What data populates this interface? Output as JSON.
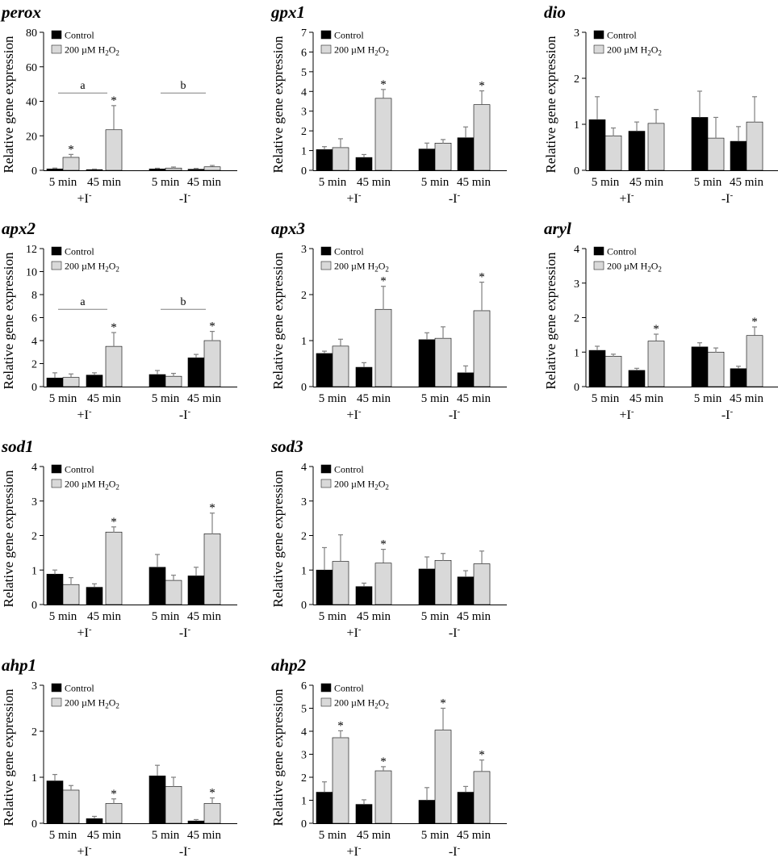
{
  "legend": {
    "control": "Control",
    "treated": "200 µM H",
    "treated_sub": "2",
    "treated_o": "O",
    "treated_sub2": "2"
  },
  "ylabel": "Relative gene expression",
  "time_labels": [
    "5 min",
    "45 min"
  ],
  "group_labels": [
    {
      "main": "+I",
      "sup": "-"
    },
    {
      "main": "-I",
      "sup": "-"
    }
  ],
  "colors": {
    "control": "#000000",
    "treated": "#d9d9d9",
    "error": "#808080"
  },
  "chart_data": [
    {
      "type": "bar",
      "title": "perox",
      "ylim": [
        0,
        80
      ],
      "yticks": [
        0,
        20,
        40,
        60,
        80
      ],
      "control": [
        0.8,
        0.4,
        0.8,
        0.6
      ],
      "treated": [
        7.5,
        23.5,
        1.3,
        2.0
      ],
      "control_err": [
        0.5,
        0.3,
        0.4,
        0.5
      ],
      "treated_err": [
        1.7,
        14.0,
        0.6,
        0.8
      ],
      "stars": [
        1,
        1,
        0,
        0
      ],
      "sig": [
        {
          "label": "a",
          "group": 0
        },
        {
          "label": "b",
          "group": 1
        }
      ]
    },
    {
      "type": "bar",
      "title": "gpx1",
      "ylim": [
        0,
        7
      ],
      "yticks": [
        0,
        1,
        2,
        3,
        4,
        5,
        6,
        7
      ],
      "control": [
        1.05,
        0.65,
        1.08,
        1.65
      ],
      "treated": [
        1.15,
        3.65,
        1.38,
        3.33
      ],
      "control_err": [
        0.15,
        0.15,
        0.3,
        0.55
      ],
      "treated_err": [
        0.45,
        0.45,
        0.18,
        0.7
      ],
      "stars": [
        0,
        1,
        0,
        1
      ],
      "sig": []
    },
    {
      "type": "bar",
      "title": "dio",
      "ylim": [
        0,
        3
      ],
      "yticks": [
        0,
        1,
        2,
        3
      ],
      "control": [
        1.1,
        0.85,
        1.15,
        0.63
      ],
      "treated": [
        0.75,
        1.02,
        0.7,
        1.05
      ],
      "control_err": [
        0.5,
        0.2,
        0.57,
        0.32
      ],
      "treated_err": [
        0.17,
        0.3,
        0.45,
        0.55
      ],
      "stars": [
        0,
        0,
        0,
        0
      ],
      "sig": []
    },
    {
      "type": "bar",
      "title": "apx2",
      "ylim": [
        0,
        12
      ],
      "yticks": [
        0,
        2,
        4,
        6,
        8,
        10,
        12
      ],
      "control": [
        0.75,
        1.0,
        1.05,
        2.5
      ],
      "treated": [
        0.8,
        3.5,
        0.9,
        4.0
      ],
      "control_err": [
        0.45,
        0.2,
        0.35,
        0.3
      ],
      "treated_err": [
        0.3,
        1.2,
        0.25,
        0.8
      ],
      "stars": [
        0,
        1,
        0,
        1
      ],
      "sig": [
        {
          "label": "a",
          "group": 0
        },
        {
          "label": "b",
          "group": 1
        }
      ]
    },
    {
      "type": "bar",
      "title": "apx3",
      "ylim": [
        0,
        3
      ],
      "yticks": [
        0,
        1,
        2,
        3
      ],
      "control": [
        0.72,
        0.42,
        1.02,
        0.3
      ],
      "treated": [
        0.88,
        1.68,
        1.05,
        1.65
      ],
      "control_err": [
        0.05,
        0.1,
        0.15,
        0.15
      ],
      "treated_err": [
        0.15,
        0.5,
        0.25,
        0.62
      ],
      "stars": [
        0,
        1,
        0,
        1
      ],
      "sig": []
    },
    {
      "type": "bar",
      "title": "aryl",
      "ylim": [
        0,
        4
      ],
      "yticks": [
        0,
        1,
        2,
        3,
        4
      ],
      "control": [
        1.05,
        0.47,
        1.15,
        0.52
      ],
      "treated": [
        0.88,
        1.32,
        1.0,
        1.48
      ],
      "control_err": [
        0.12,
        0.06,
        0.12,
        0.07
      ],
      "treated_err": [
        0.06,
        0.2,
        0.12,
        0.25
      ],
      "stars": [
        0,
        1,
        0,
        1
      ],
      "sig": []
    },
    {
      "type": "bar",
      "title": "sod1",
      "ylim": [
        0,
        4
      ],
      "yticks": [
        0,
        1,
        2,
        3,
        4
      ],
      "control": [
        0.88,
        0.5,
        1.08,
        0.83
      ],
      "treated": [
        0.58,
        2.1,
        0.7,
        2.05
      ],
      "control_err": [
        0.12,
        0.1,
        0.37,
        0.25
      ],
      "treated_err": [
        0.2,
        0.15,
        0.15,
        0.6
      ],
      "stars": [
        0,
        1,
        0,
        1
      ],
      "sig": []
    },
    {
      "type": "bar",
      "title": "sod3",
      "ylim": [
        0,
        4
      ],
      "yticks": [
        0,
        1,
        2,
        3,
        4
      ],
      "control": [
        1.0,
        0.52,
        1.03,
        0.8
      ],
      "treated": [
        1.25,
        1.2,
        1.28,
        1.18
      ],
      "control_err": [
        0.65,
        0.1,
        0.35,
        0.18
      ],
      "treated_err": [
        0.77,
        0.4,
        0.2,
        0.37
      ],
      "stars": [
        0,
        1,
        0,
        0
      ],
      "sig": []
    },
    {
      "type": "bar",
      "title": "ahp1",
      "ylim": [
        0,
        3
      ],
      "yticks": [
        0,
        1,
        2,
        3
      ],
      "control": [
        0.92,
        0.1,
        1.03,
        0.05
      ],
      "treated": [
        0.72,
        0.43,
        0.8,
        0.43
      ],
      "control_err": [
        0.14,
        0.05,
        0.23,
        0.03
      ],
      "treated_err": [
        0.1,
        0.1,
        0.2,
        0.12
      ],
      "stars": [
        0,
        1,
        0,
        1
      ],
      "sig": []
    },
    {
      "type": "bar",
      "title": "ahp2",
      "ylim": [
        0,
        6
      ],
      "yticks": [
        0,
        1,
        2,
        3,
        4,
        5,
        6
      ],
      "control": [
        1.35,
        0.82,
        1.0,
        1.35
      ],
      "treated": [
        3.72,
        2.28,
        4.05,
        2.25
      ],
      "control_err": [
        0.45,
        0.2,
        0.55,
        0.25
      ],
      "treated_err": [
        0.3,
        0.18,
        0.95,
        0.5
      ],
      "stars": [
        1,
        1,
        1,
        1
      ],
      "sig": []
    }
  ]
}
